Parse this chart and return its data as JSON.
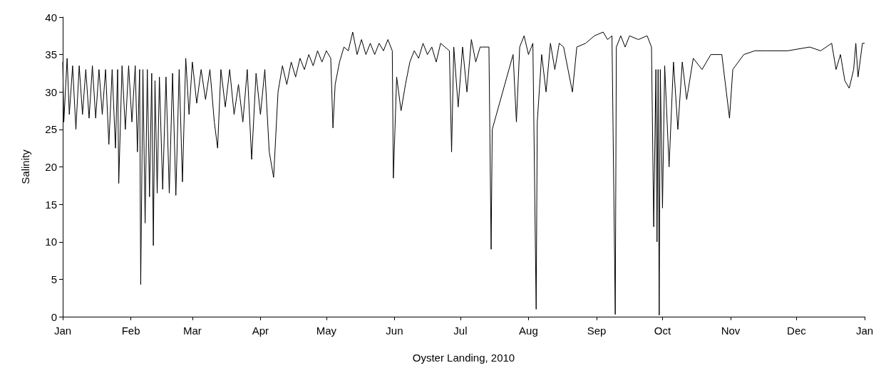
{
  "chart_data": {
    "type": "line",
    "xlabel": "Oyster Landing, 2010",
    "ylabel": "Salinity",
    "xlim": [
      "2010-01-01",
      "2011-01-01"
    ],
    "ylim": [
      0,
      40
    ],
    "yticks": [
      0,
      5,
      10,
      15,
      20,
      25,
      30,
      35,
      40
    ],
    "xticks": [
      {
        "value": "2010-01-01",
        "label": "Jan"
      },
      {
        "value": "2010-02-01",
        "label": "Feb"
      },
      {
        "value": "2010-03-01",
        "label": "Mar"
      },
      {
        "value": "2010-04-01",
        "label": "Apr"
      },
      {
        "value": "2010-05-01",
        "label": "May"
      },
      {
        "value": "2010-06-01",
        "label": "Jun"
      },
      {
        "value": "2010-07-01",
        "label": "Jul"
      },
      {
        "value": "2010-08-01",
        "label": "Aug"
      },
      {
        "value": "2010-09-01",
        "label": "Sep"
      },
      {
        "value": "2010-10-01",
        "label": "Oct"
      },
      {
        "value": "2010-11-01",
        "label": "Nov"
      },
      {
        "value": "2010-12-01",
        "label": "Dec"
      },
      {
        "value": "2011-01-01",
        "label": "Jan"
      }
    ],
    "grid": false,
    "marker": "none",
    "line_style": "solid",
    "series": [
      {
        "color": "#000000",
        "x": [
          "2010-01-01",
          "2010-01-01T12:00",
          "2010-01-03",
          "2010-01-04",
          "2010-01-05T12:00",
          "2010-01-07",
          "2010-01-08T12:00",
          "2010-01-10",
          "2010-01-11T12:00",
          "2010-01-13",
          "2010-01-14T12:00",
          "2010-01-16",
          "2010-01-17T12:00",
          "2010-01-19",
          "2010-01-20T12:00",
          "2010-01-22",
          "2010-01-23T12:00",
          "2010-01-25",
          "2010-01-26",
          "2010-01-26T12:00",
          "2010-01-28",
          "2010-01-29T12:00",
          "2010-01-31",
          "2010-02-01T12:00",
          "2010-02-03",
          "2010-02-04",
          "2010-02-05",
          "2010-02-05T12:00",
          "2010-02-06T12:00",
          "2010-02-07T12:00",
          "2010-02-08T12:00",
          "2010-02-09T12:00",
          "2010-02-10T12:00",
          "2010-02-11T06:00",
          "2010-02-12",
          "2010-02-13",
          "2010-02-14",
          "2010-02-15T12:00",
          "2010-02-17",
          "2010-02-18T12:00",
          "2010-02-20",
          "2010-02-21T12:00",
          "2010-02-23",
          "2010-02-24T12:00",
          "2010-02-26",
          "2010-02-27T12:00",
          "2010-03-01",
          "2010-03-03",
          "2010-03-05",
          "2010-03-07",
          "2010-03-09",
          "2010-03-11",
          "2010-03-12T12:00",
          "2010-03-14",
          "2010-03-16",
          "2010-03-18",
          "2010-03-20",
          "2010-03-22",
          "2010-03-24",
          "2010-03-26",
          "2010-03-28",
          "2010-03-30",
          "2010-04-01",
          "2010-04-03",
          "2010-04-05",
          "2010-04-07",
          "2010-04-09",
          "2010-04-11",
          "2010-04-13",
          "2010-04-15",
          "2010-04-17",
          "2010-04-19",
          "2010-04-21",
          "2010-04-23",
          "2010-04-25",
          "2010-04-27",
          "2010-04-29",
          "2010-05-01",
          "2010-05-03",
          "2010-05-04",
          "2010-05-05",
          "2010-05-07",
          "2010-05-09",
          "2010-05-11",
          "2010-05-13",
          "2010-05-15",
          "2010-05-17",
          "2010-05-19",
          "2010-05-21",
          "2010-05-23",
          "2010-05-25",
          "2010-05-27",
          "2010-05-29",
          "2010-05-31",
          "2010-05-31T12:00",
          "2010-06-02",
          "2010-06-04",
          "2010-06-06",
          "2010-06-08",
          "2010-06-10",
          "2010-06-12",
          "2010-06-14",
          "2010-06-16",
          "2010-06-18",
          "2010-06-20",
          "2010-06-22",
          "2010-06-26",
          "2010-06-27",
          "2010-06-28",
          "2010-06-30",
          "2010-07-02",
          "2010-07-04",
          "2010-07-06",
          "2010-07-08",
          "2010-07-10",
          "2010-07-14",
          "2010-07-15",
          "2010-07-15T12:00",
          "2010-07-25",
          "2010-07-26T12:00",
          "2010-07-28",
          "2010-07-30",
          "2010-08-01",
          "2010-08-03",
          "2010-08-04T12:00",
          "2010-08-05",
          "2010-08-07",
          "2010-08-09",
          "2010-08-11",
          "2010-08-13",
          "2010-08-15",
          "2010-08-17",
          "2010-08-19",
          "2010-08-21",
          "2010-08-23",
          "2010-08-27",
          "2010-08-31",
          "2010-09-04",
          "2010-09-06",
          "2010-09-08",
          "2010-09-09T12:00",
          "2010-09-10",
          "2010-09-12",
          "2010-09-14",
          "2010-09-16",
          "2010-09-20",
          "2010-09-24",
          "2010-09-26",
          "2010-09-27",
          "2010-09-28",
          "2010-09-28T12:00",
          "2010-09-29",
          "2010-09-29T12:00",
          "2010-09-30",
          "2010-10-01",
          "2010-10-02",
          "2010-10-04",
          "2010-10-06",
          "2010-10-08",
          "2010-10-10",
          "2010-10-12",
          "2010-10-15",
          "2010-10-19",
          "2010-10-23",
          "2010-10-28",
          "2010-10-31T12:00",
          "2010-11-02",
          "2010-11-07",
          "2010-11-12",
          "2010-11-17",
          "2010-11-27",
          "2010-12-07",
          "2010-12-12",
          "2010-12-17",
          "2010-12-19",
          "2010-12-21",
          "2010-12-23",
          "2010-12-25",
          "2010-12-27",
          "2010-12-28",
          "2010-12-29",
          "2010-12-31",
          "2011-01-01"
        ],
        "values": [
          34,
          26,
          34.5,
          27,
          33.5,
          25,
          33.5,
          27,
          33,
          26.5,
          33.5,
          26.5,
          33,
          27,
          33,
          23,
          33,
          22.5,
          33,
          17.8,
          33.5,
          25,
          33.5,
          26,
          33.5,
          22,
          33,
          4.3,
          33,
          12.5,
          33,
          16,
          32.5,
          9.5,
          31.5,
          16.5,
          32,
          17,
          32,
          16.5,
          32.5,
          16.2,
          33,
          18,
          34.5,
          27,
          34,
          28.5,
          33,
          29,
          33,
          26,
          22.5,
          33,
          28,
          33,
          27,
          31,
          26,
          33,
          21,
          32.5,
          27,
          33,
          22,
          18.6,
          30,
          33.5,
          31,
          34,
          32,
          34.5,
          33,
          35,
          33.5,
          35.5,
          34,
          35.5,
          34.5,
          25.2,
          31,
          34,
          36,
          35.5,
          38,
          35,
          37,
          35,
          36.5,
          35,
          36.5,
          35.5,
          37,
          35.5,
          18.5,
          32,
          27.5,
          31,
          34,
          35.5,
          34.5,
          36.5,
          35,
          36,
          34,
          36.5,
          35.5,
          22,
          36,
          28,
          36,
          30,
          37,
          34,
          36,
          36,
          9,
          25,
          35,
          26,
          36,
          37.5,
          35,
          36.5,
          1,
          26,
          35,
          30,
          36.5,
          33,
          36.5,
          36,
          33,
          30,
          36,
          36.5,
          37.5,
          38,
          37,
          37.5,
          0.3,
          36,
          37.5,
          36,
          37.5,
          37,
          37.5,
          36,
          12,
          33,
          10,
          33,
          0.2,
          33,
          14.5,
          33.5,
          20,
          34,
          25,
          34,
          29,
          34.5,
          33,
          35,
          35,
          26.5,
          33,
          35,
          35.5,
          35.5,
          35.5,
          36,
          35.5,
          36.5,
          33,
          35,
          31.5,
          30.5,
          33,
          36.5,
          32,
          36.5,
          36.5
        ]
      }
    ]
  }
}
